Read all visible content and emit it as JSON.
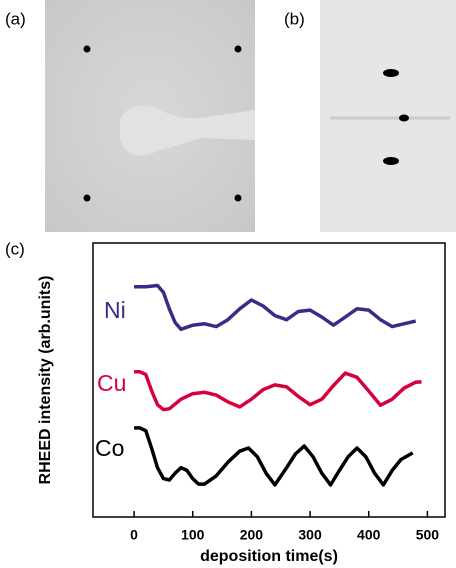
{
  "panel_labels": [
    "(a)",
    "(b)",
    "(c)"
  ],
  "chart_data": {
    "type": "line",
    "x_label": "deposition time(s)",
    "y_label": "RHEED intensity (arb.units)",
    "xlim": [
      -70,
      530
    ],
    "xticks": [
      0,
      100,
      200,
      300,
      400,
      500
    ],
    "ylim": [
      0,
      10
    ],
    "series": [
      {
        "name": "Ni",
        "color": "#3b2a8a",
        "x": [
          0,
          20,
          40,
          50,
          60,
          70,
          80,
          100,
          120,
          140,
          160,
          180,
          200,
          220,
          240,
          260,
          280,
          300,
          320,
          340,
          360,
          380,
          400,
          420,
          440,
          460,
          480
        ],
        "values": [
          8.4,
          8.4,
          8.45,
          8.2,
          7.6,
          7.1,
          6.85,
          7.0,
          7.05,
          6.95,
          7.2,
          7.6,
          7.92,
          7.7,
          7.35,
          7.2,
          7.5,
          7.55,
          7.3,
          7.0,
          7.3,
          7.6,
          7.55,
          7.2,
          6.95,
          7.05,
          7.15
        ]
      },
      {
        "name": "Cu",
        "color": "#d6003c",
        "x": [
          0,
          10,
          20,
          30,
          40,
          50,
          60,
          80,
          100,
          120,
          140,
          160,
          180,
          200,
          220,
          240,
          260,
          280,
          300,
          320,
          340,
          360,
          380,
          400,
          420,
          440,
          460,
          480,
          490
        ],
        "values": [
          5.3,
          5.3,
          5.2,
          4.6,
          4.1,
          3.92,
          3.95,
          4.3,
          4.5,
          4.55,
          4.45,
          4.2,
          4.02,
          4.3,
          4.65,
          4.82,
          4.75,
          4.4,
          4.1,
          4.3,
          4.8,
          5.25,
          5.1,
          4.6,
          4.08,
          4.3,
          4.7,
          4.92,
          4.93
        ]
      },
      {
        "name": "Co",
        "color": "#000000",
        "x": [
          0,
          10,
          20,
          30,
          40,
          50,
          60,
          70,
          80,
          90,
          100,
          110,
          120,
          140,
          160,
          180,
          195,
          210,
          225,
          240,
          260,
          275,
          290,
          305,
          320,
          335,
          350,
          365,
          380,
          395,
          410,
          425,
          440,
          455,
          475
        ],
        "values": [
          3.25,
          3.25,
          3.15,
          2.5,
          1.8,
          1.4,
          1.35,
          1.6,
          1.8,
          1.7,
          1.4,
          1.2,
          1.2,
          1.5,
          2.0,
          2.4,
          2.52,
          2.2,
          1.6,
          1.17,
          1.8,
          2.3,
          2.59,
          2.2,
          1.6,
          1.17,
          1.7,
          2.2,
          2.52,
          2.2,
          1.6,
          1.17,
          1.7,
          2.1,
          2.34
        ]
      }
    ]
  }
}
